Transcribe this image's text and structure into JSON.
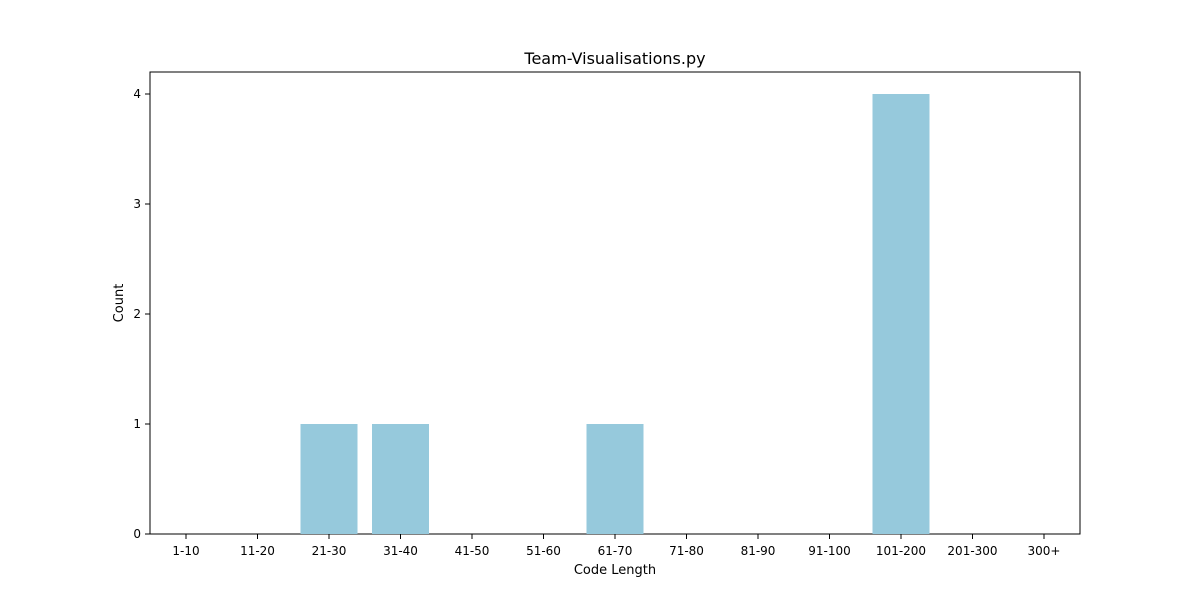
{
  "chart_data": {
    "type": "bar",
    "title": "Team-Visualisations.py",
    "xlabel": "Code Length",
    "ylabel": "Count",
    "categories": [
      "1-10",
      "11-20",
      "21-30",
      "31-40",
      "41-50",
      "51-60",
      "61-70",
      "71-80",
      "81-90",
      "91-100",
      "101-200",
      "201-300",
      "300+"
    ],
    "values": [
      0,
      0,
      1,
      1,
      0,
      0,
      1,
      0,
      0,
      0,
      4,
      0,
      0
    ],
    "ylim": [
      0,
      4.2
    ],
    "yticks": [
      0,
      1,
      2,
      3,
      4
    ],
    "grid": false,
    "colors": {
      "bar": "#96c9dc",
      "axis": "#000000",
      "text": "#000000"
    }
  }
}
